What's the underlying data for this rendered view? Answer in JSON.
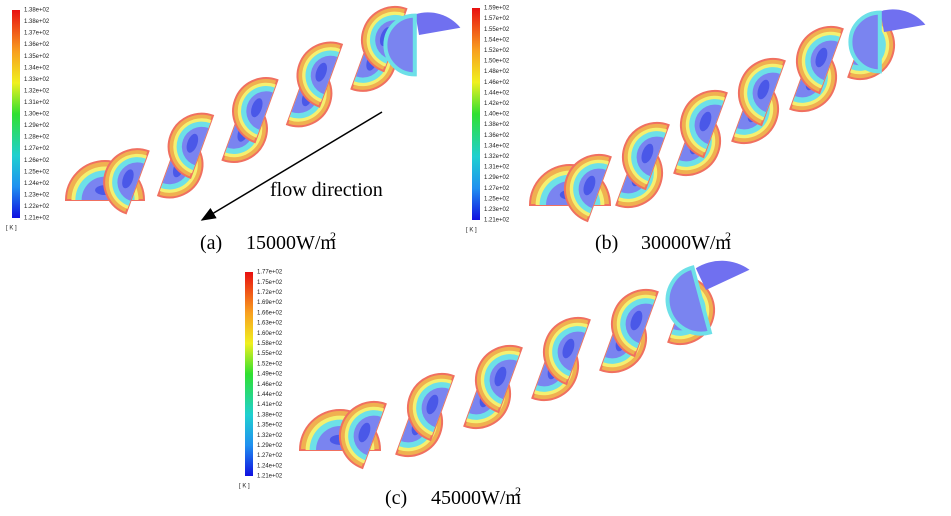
{
  "panels": [
    {
      "caption": {
        "label": "(a)",
        "text": "15000W/m",
        "sup": "2"
      },
      "colorbar": {
        "labels": [
          "1.38e+02",
          "1.38e+02",
          "1.37e+02",
          "1.36e+02",
          "1.35e+02",
          "1.34e+02",
          "1.33e+02",
          "1.32e+02",
          "1.31e+02",
          "1.30e+02",
          "1.29e+02",
          "1.28e+02",
          "1.27e+02",
          "1.26e+02",
          "1.25e+02",
          "1.24e+02",
          "1.23e+02",
          "1.22e+02",
          "1.21e+02"
        ],
        "unit": "[ K ]"
      }
    },
    {
      "caption": {
        "label": "(b)",
        "text": "30000W/m",
        "sup": "2"
      },
      "colorbar": {
        "labels": [
          "1.59e+02",
          "1.57e+02",
          "1.55e+02",
          "1.54e+02",
          "1.52e+02",
          "1.50e+02",
          "1.48e+02",
          "1.46e+02",
          "1.44e+02",
          "1.42e+02",
          "1.40e+02",
          "1.38e+02",
          "1.36e+02",
          "1.34e+02",
          "1.32e+02",
          "1.31e+02",
          "1.29e+02",
          "1.27e+02",
          "1.25e+02",
          "1.23e+02",
          "1.21e+02"
        ],
        "unit": "[ K ]"
      }
    },
    {
      "caption": {
        "label": "(c)",
        "text": "45000W/m",
        "sup": "2"
      },
      "colorbar": {
        "labels": [
          "1.77e+02",
          "1.75e+02",
          "1.72e+02",
          "1.69e+02",
          "1.66e+02",
          "1.63e+02",
          "1.60e+02",
          "1.58e+02",
          "1.55e+02",
          "1.52e+02",
          "1.49e+02",
          "1.46e+02",
          "1.44e+02",
          "1.41e+02",
          "1.38e+02",
          "1.35e+02",
          "1.32e+02",
          "1.29e+02",
          "1.27e+02",
          "1.24e+02",
          "1.21e+02"
        ],
        "unit": "[ K ]"
      }
    }
  ],
  "annotation": "flow direction"
}
